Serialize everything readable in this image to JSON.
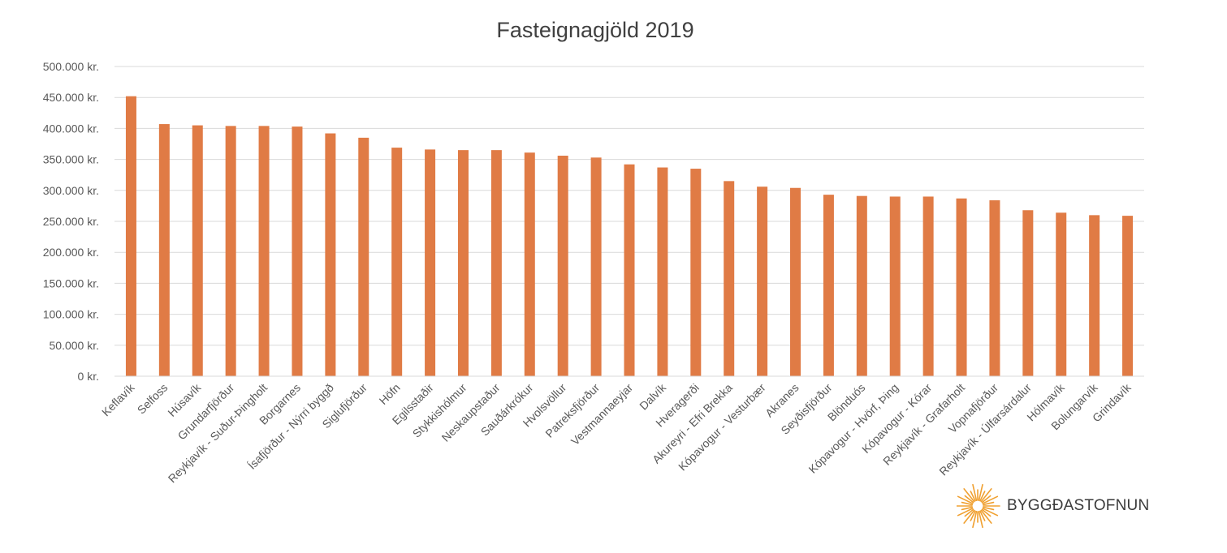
{
  "chart_data": {
    "type": "bar",
    "title": "Fasteignagjöld 2019",
    "xlabel": "",
    "ylabel": "",
    "ylim": [
      0,
      500000
    ],
    "yticks": [
      "0 kr.",
      "50.000 kr.",
      "100.000 kr.",
      "150.000 kr.",
      "200.000 kr.",
      "250.000 kr.",
      "300.000 kr.",
      "350.000 kr.",
      "400.000 kr.",
      "450.000 kr.",
      "500.000 kr."
    ],
    "grid": true,
    "legend": "none",
    "bar_color": "#E07B45",
    "categories": [
      "Keflavík",
      "Selfoss",
      "Húsavík",
      "Grundarfjörður",
      "Reykjavík - Suður-Þingholt",
      "Borgarnes",
      "Ísafjörður - Nýrri byggð",
      "Siglufjörður",
      "Höfn",
      "Egilsstaðir",
      "Stykkishólmur",
      "Neskaupstaður",
      "Sauðárkrókur",
      "Hvolsvöllur",
      "Patreksfjörður",
      "Vestmannaeyjar",
      "Dalvík",
      "Hveragerði",
      "Akureyri - Efri Brekka",
      "Kópavogur - Vesturbær",
      "Akranes",
      "Seyðisfjörður",
      "Blönduós",
      "Kópavogur - Hvörf, Þing",
      "Kópavogur - Kórar",
      "Reykjavík - Grafarholt",
      "Vopnafjörður",
      "Reykjavík - Úlfarsárdalur",
      "Hólmavík",
      "Bolungarvík",
      "Grindavík"
    ],
    "values": [
      452000,
      407000,
      405000,
      404000,
      404000,
      403000,
      392000,
      385000,
      369000,
      366000,
      365000,
      365000,
      361000,
      356000,
      353000,
      342000,
      337000,
      335000,
      315000,
      306000,
      304000,
      293000,
      291000,
      290000,
      290000,
      287000,
      284000,
      268000,
      264000,
      260000,
      259000
    ]
  },
  "logo": {
    "text": "BYGGÐASTOFNUN",
    "color": "#F0A030"
  }
}
